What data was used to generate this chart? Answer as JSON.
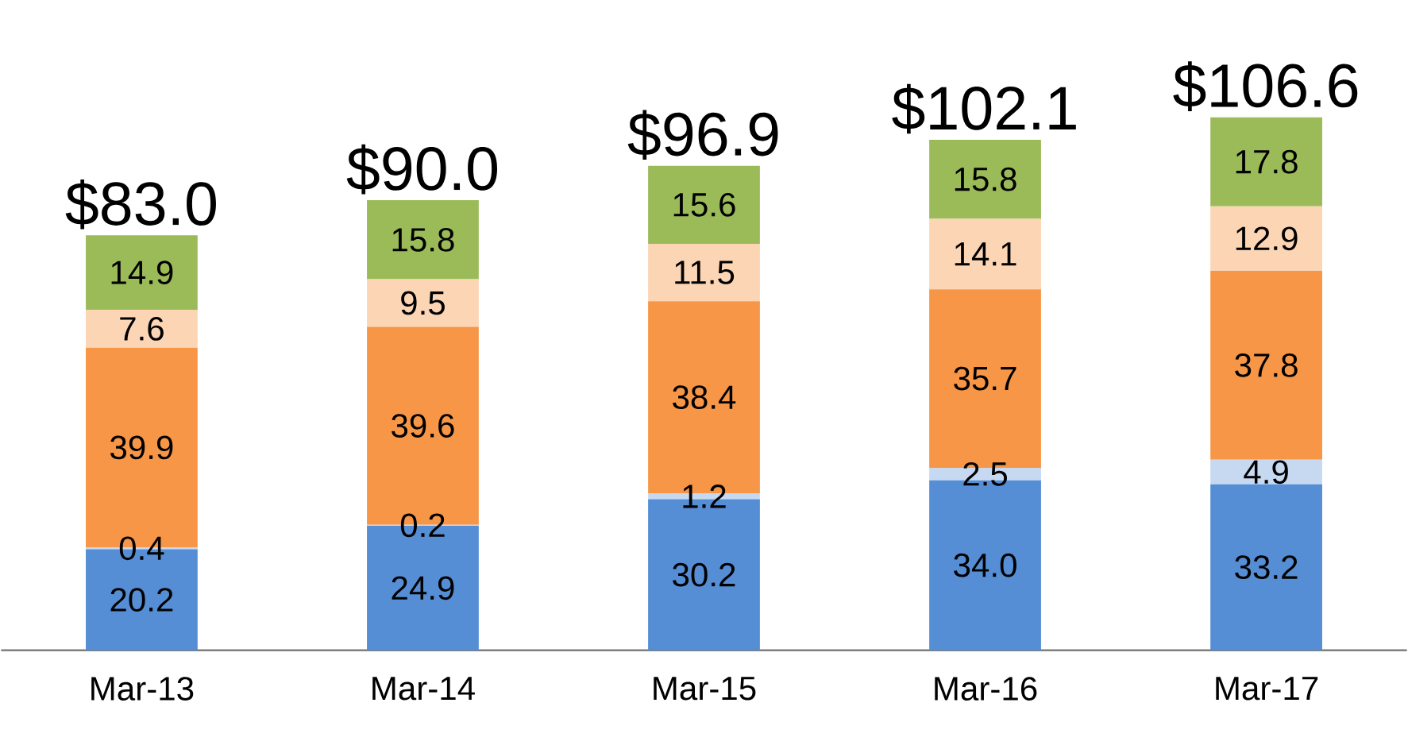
{
  "chart_data": {
    "type": "bar",
    "stacked": true,
    "categories": [
      "Mar-13",
      "Mar-14",
      "Mar-15",
      "Mar-16",
      "Mar-17"
    ],
    "series": [
      {
        "color": "#558ed5",
        "values": [
          20.2,
          24.9,
          30.2,
          34.0,
          33.2
        ],
        "value_labels": [
          "20.2",
          "24.9",
          "30.2",
          "34.0",
          "33.2"
        ]
      },
      {
        "color": "#c6d9f1",
        "values": [
          0.4,
          0.2,
          1.2,
          2.5,
          4.9
        ],
        "value_labels": [
          "0.4",
          "0.2",
          "1.2",
          "2.5",
          "4.9"
        ]
      },
      {
        "color": "#f79646",
        "values": [
          39.9,
          39.6,
          38.4,
          35.7,
          37.8
        ],
        "value_labels": [
          "39.9",
          "39.6",
          "38.4",
          "35.7",
          "37.8"
        ]
      },
      {
        "color": "#fcd5b5",
        "values": [
          7.6,
          9.5,
          11.5,
          14.1,
          12.9
        ],
        "value_labels": [
          "7.6",
          "9.5",
          "11.5",
          "14.1",
          "12.9"
        ]
      },
      {
        "color": "#9bbb59",
        "values": [
          14.9,
          15.8,
          15.6,
          15.8,
          17.8
        ],
        "value_labels": [
          "14.9",
          "15.8",
          "15.6",
          "15.8",
          "17.8"
        ]
      }
    ],
    "totals": [
      "$83.0",
      "$90.0",
      "$96.9",
      "$102.1",
      "$106.6"
    ]
  }
}
